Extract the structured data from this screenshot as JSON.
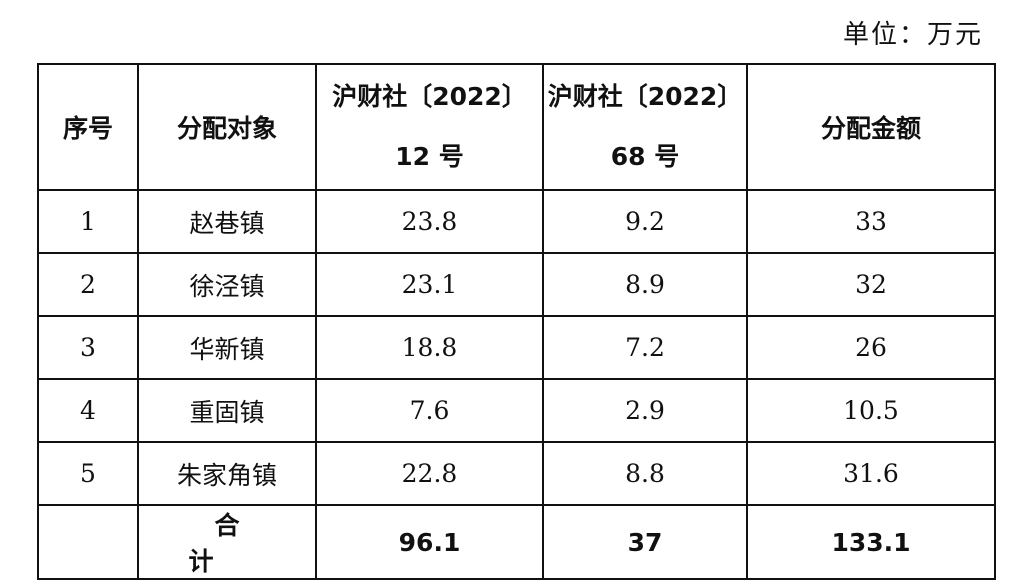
{
  "unit_label": "单位：万元",
  "table": {
    "headers": {
      "index": "序号",
      "target": "分配对象",
      "col12": [
        "沪财社〔2022〕",
        "12 号"
      ],
      "col68": [
        "沪财社〔2022〕",
        "68 号"
      ],
      "amount": "分配金额"
    },
    "rows": [
      {
        "index": "1",
        "target": "赵巷镇",
        "col12": "23.8",
        "col68": "9.2",
        "amount": "33"
      },
      {
        "index": "2",
        "target": "徐泾镇",
        "col12": "23.1",
        "col68": "8.9",
        "amount": "32"
      },
      {
        "index": "3",
        "target": "华新镇",
        "col12": "18.8",
        "col68": "7.2",
        "amount": "26"
      },
      {
        "index": "4",
        "target": "重固镇",
        "col12": "7.6",
        "col68": "2.9",
        "amount": "10.5"
      },
      {
        "index": "5",
        "target": "朱家角镇",
        "col12": "22.8",
        "col68": "8.8",
        "amount": "31.6"
      }
    ],
    "total": {
      "label": "合计",
      "col12": "96.1",
      "col68": "37",
      "amount": "133.1"
    }
  }
}
